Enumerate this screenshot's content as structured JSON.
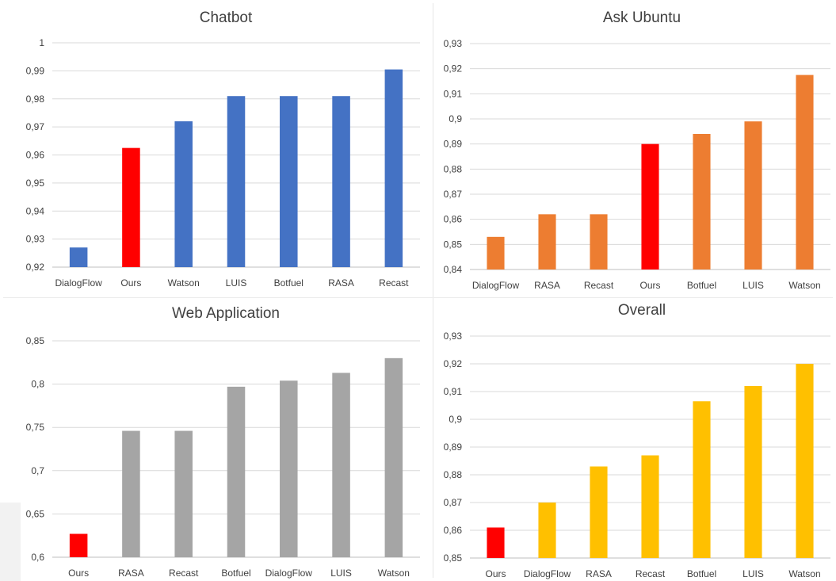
{
  "chart_data": [
    {
      "type": "bar",
      "title": "Chatbot",
      "categories": [
        "DialogFlow",
        "Ours",
        "Watson",
        "LUIS",
        "Botfuel",
        "RASA",
        "Recast"
      ],
      "values": [
        0.927,
        0.9625,
        0.972,
        0.981,
        0.981,
        0.981,
        0.9905
      ],
      "colors": [
        "#4472c4",
        "#ff0000",
        "#4472c4",
        "#4472c4",
        "#4472c4",
        "#4472c4",
        "#4472c4"
      ],
      "ylim": [
        0.92,
        1
      ],
      "yticks": [
        "0,92",
        "0,93",
        "0,94",
        "0,95",
        "0,96",
        "0,97",
        "0,98",
        "0,99",
        "1"
      ],
      "grid": true
    },
    {
      "type": "bar",
      "title": "Ask Ubuntu",
      "categories": [
        "DialogFlow",
        "RASA",
        "Recast",
        "Ours",
        "Botfuel",
        "LUIS",
        "Watson"
      ],
      "values": [
        0.853,
        0.862,
        0.862,
        0.89,
        0.894,
        0.899,
        0.9175
      ],
      "colors": [
        "#ed7d31",
        "#ed7d31",
        "#ed7d31",
        "#ff0000",
        "#ed7d31",
        "#ed7d31",
        "#ed7d31"
      ],
      "ylim": [
        0.84,
        0.93
      ],
      "yticks": [
        "0,84",
        "0,85",
        "0,86",
        "0,87",
        "0,88",
        "0,89",
        "0,9",
        "0,91",
        "0,92",
        "0,93"
      ],
      "grid": true
    },
    {
      "type": "bar",
      "title": "Web Application",
      "categories": [
        "Ours",
        "RASA",
        "Recast",
        "Botfuel",
        "DialogFlow",
        "LUIS",
        "Watson"
      ],
      "values": [
        0.627,
        0.746,
        0.746,
        0.797,
        0.804,
        0.813,
        0.83
      ],
      "colors": [
        "#ff0000",
        "#a5a5a5",
        "#a5a5a5",
        "#a5a5a5",
        "#a5a5a5",
        "#a5a5a5",
        "#a5a5a5"
      ],
      "ylim": [
        0.6,
        0.85
      ],
      "yticks": [
        "0,6",
        "0,65",
        "0,7",
        "0,75",
        "0,8",
        "0,85"
      ],
      "grid": true
    },
    {
      "type": "bar",
      "title": "Overall",
      "categories": [
        "Ours",
        "DialogFlow",
        "RASA",
        "Recast",
        "Botfuel",
        "LUIS",
        "Watson"
      ],
      "values": [
        0.861,
        0.87,
        0.883,
        0.887,
        0.9065,
        0.912,
        0.92
      ],
      "colors": [
        "#ff0000",
        "#ffc000",
        "#ffc000",
        "#ffc000",
        "#ffc000",
        "#ffc000",
        "#ffc000"
      ],
      "ylim": [
        0.85,
        0.93
      ],
      "yticks": [
        "0,85",
        "0,86",
        "0,87",
        "0,88",
        "0,89",
        "0,9",
        "0,91",
        "0,92",
        "0,93"
      ],
      "grid": true
    }
  ]
}
